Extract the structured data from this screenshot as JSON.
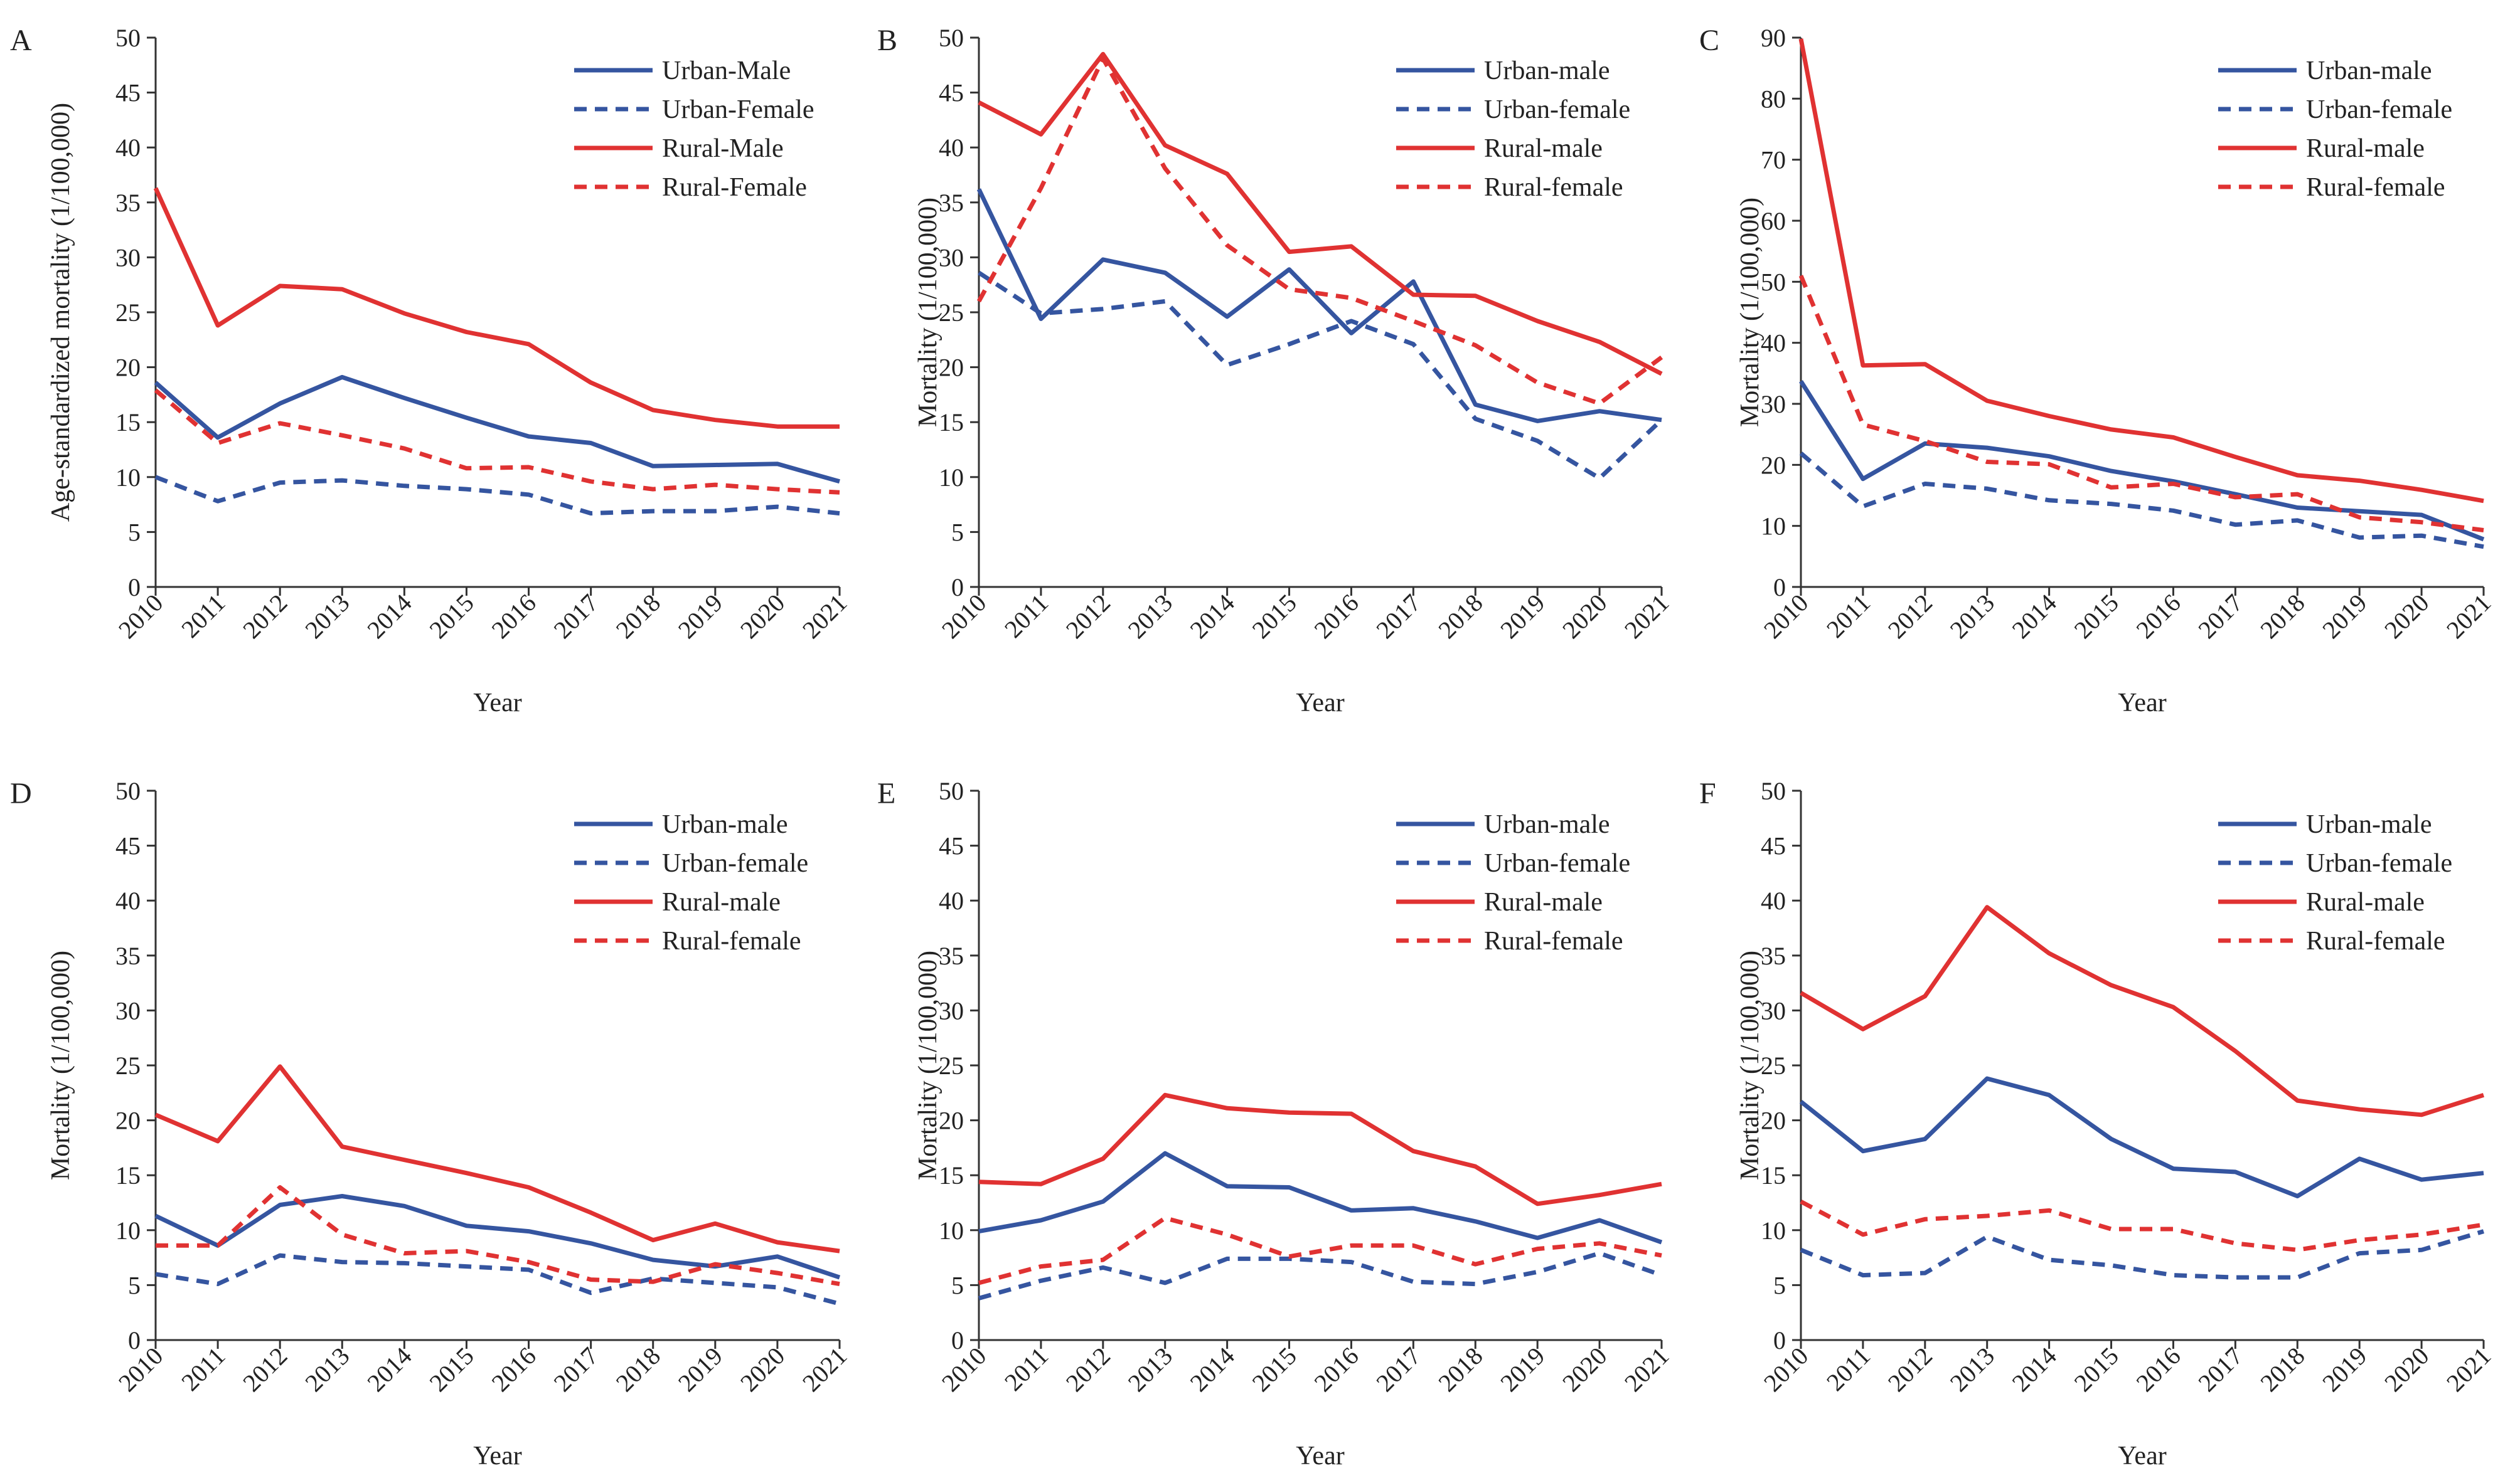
{
  "years": [
    "2010",
    "2011",
    "2012",
    "2013",
    "2014",
    "2015",
    "2016",
    "2017",
    "2018",
    "2019",
    "2020",
    "2021"
  ],
  "colors": {
    "urban": "#3555a0",
    "rural": "#e03232",
    "axis": "#333333"
  },
  "chart_data": [
    {
      "panel": "A",
      "type": "line",
      "ylabel": "Age-standardized mortality (1/100,000)",
      "xlabel": "Year",
      "ylim": [
        0,
        50
      ],
      "ytick_step": 5,
      "series": [
        {
          "name": "Urban-Male",
          "group": "urban",
          "style": "solid",
          "values": [
            18.6,
            13.6,
            16.7,
            19.1,
            17.2,
            15.4,
            13.7,
            13.1,
            11.0,
            11.1,
            11.2,
            9.6
          ]
        },
        {
          "name": "Urban-Female",
          "group": "urban",
          "style": "dashed",
          "values": [
            10.0,
            7.8,
            9.5,
            9.7,
            9.2,
            8.9,
            8.4,
            6.7,
            6.9,
            6.9,
            7.3,
            6.7
          ]
        },
        {
          "name": "Rural-Male",
          "group": "rural",
          "style": "solid",
          "values": [
            36.3,
            23.8,
            27.4,
            27.1,
            24.9,
            23.2,
            22.1,
            18.6,
            16.1,
            15.2,
            14.6,
            14.6
          ]
        },
        {
          "name": "Rural-Female",
          "group": "rural",
          "style": "dashed",
          "values": [
            17.9,
            13.1,
            14.9,
            13.8,
            12.6,
            10.8,
            10.9,
            9.6,
            8.9,
            9.3,
            8.9,
            8.6
          ]
        }
      ]
    },
    {
      "panel": "B",
      "type": "line",
      "ylabel": "Mortality (1/100,000)",
      "xlabel": "Year",
      "ylim": [
        0,
        50
      ],
      "ytick_step": 5,
      "series": [
        {
          "name": "Urban-male",
          "group": "urban",
          "style": "solid",
          "values": [
            36.2,
            24.4,
            29.8,
            28.6,
            24.6,
            28.9,
            23.1,
            27.8,
            16.6,
            15.1,
            16.0,
            15.2
          ]
        },
        {
          "name": "Urban-female",
          "group": "urban",
          "style": "dashed",
          "values": [
            28.6,
            24.9,
            25.3,
            26.0,
            20.2,
            22.1,
            24.2,
            22.1,
            15.3,
            13.3,
            9.9,
            15.2
          ]
        },
        {
          "name": "Rural-male",
          "group": "rural",
          "style": "solid",
          "values": [
            44.1,
            41.2,
            48.5,
            40.2,
            37.6,
            30.5,
            31.0,
            26.6,
            26.5,
            24.2,
            22.3,
            19.4
          ]
        },
        {
          "name": "Rural-female",
          "group": "rural",
          "style": "dashed",
          "values": [
            26.0,
            36.3,
            48.1,
            38.1,
            31.1,
            27.1,
            26.3,
            24.2,
            22.0,
            18.6,
            16.7,
            20.9
          ]
        }
      ]
    },
    {
      "panel": "C",
      "type": "line",
      "ylabel": "Mortality (1/100,000)",
      "xlabel": "Year",
      "ylim": [
        0,
        90
      ],
      "ytick_step": 10,
      "series": [
        {
          "name": "Urban-male",
          "group": "urban",
          "style": "solid",
          "values": [
            33.7,
            17.7,
            23.5,
            22.8,
            21.4,
            19.0,
            17.3,
            15.2,
            13.0,
            12.4,
            11.8,
            7.8
          ]
        },
        {
          "name": "Urban-female",
          "group": "urban",
          "style": "dashed",
          "values": [
            21.9,
            13.2,
            16.9,
            16.1,
            14.2,
            13.6,
            12.5,
            10.2,
            10.9,
            8.1,
            8.4,
            6.6
          ]
        },
        {
          "name": "Rural-male",
          "group": "rural",
          "style": "solid",
          "values": [
            89.8,
            36.3,
            36.5,
            30.5,
            28.0,
            25.8,
            24.5,
            21.3,
            18.3,
            17.4,
            15.9,
            14.1
          ]
        },
        {
          "name": "Rural-female",
          "group": "rural",
          "style": "dashed",
          "values": [
            51.0,
            26.6,
            23.9,
            20.5,
            20.1,
            16.3,
            16.9,
            14.7,
            15.2,
            11.4,
            10.6,
            9.3
          ]
        }
      ]
    },
    {
      "panel": "D",
      "type": "line",
      "ylabel": "Mortality (1/100,000)",
      "xlabel": "Year",
      "ylim": [
        0,
        50
      ],
      "ytick_step": 5,
      "series": [
        {
          "name": "Urban-male",
          "group": "urban",
          "style": "solid",
          "values": [
            11.3,
            8.6,
            12.3,
            13.1,
            12.2,
            10.4,
            9.9,
            8.8,
            7.3,
            6.7,
            7.6,
            5.7
          ]
        },
        {
          "name": "Urban-female",
          "group": "urban",
          "style": "dashed",
          "values": [
            6.0,
            5.1,
            7.7,
            7.1,
            7.0,
            6.7,
            6.4,
            4.3,
            5.6,
            5.2,
            4.8,
            3.3
          ]
        },
        {
          "name": "Rural-male",
          "group": "rural",
          "style": "solid",
          "values": [
            20.5,
            18.1,
            24.9,
            17.6,
            16.4,
            15.2,
            13.9,
            11.6,
            9.1,
            10.6,
            8.9,
            8.1
          ]
        },
        {
          "name": "Rural-female",
          "group": "rural",
          "style": "dashed",
          "values": [
            8.6,
            8.6,
            13.9,
            9.6,
            7.9,
            8.1,
            7.1,
            5.5,
            5.3,
            6.9,
            6.1,
            5.1
          ]
        }
      ]
    },
    {
      "panel": "E",
      "type": "line",
      "ylabel": "Mortality (1/100,000)",
      "xlabel": "Year",
      "ylim": [
        0,
        50
      ],
      "ytick_step": 5,
      "series": [
        {
          "name": "Urban-male",
          "group": "urban",
          "style": "solid",
          "values": [
            9.9,
            10.9,
            12.6,
            17.0,
            14.0,
            13.9,
            11.8,
            12.0,
            10.8,
            9.3,
            10.9,
            8.9
          ]
        },
        {
          "name": "Urban-female",
          "group": "urban",
          "style": "dashed",
          "values": [
            3.8,
            5.4,
            6.6,
            5.2,
            7.4,
            7.4,
            7.1,
            5.3,
            5.1,
            6.2,
            7.9,
            5.9
          ]
        },
        {
          "name": "Rural-male",
          "group": "rural",
          "style": "solid",
          "values": [
            14.4,
            14.2,
            16.5,
            22.3,
            21.1,
            20.7,
            20.6,
            17.2,
            15.8,
            12.4,
            13.2,
            14.2
          ]
        },
        {
          "name": "Rural-female",
          "group": "rural",
          "style": "dashed",
          "values": [
            5.2,
            6.7,
            7.3,
            11.1,
            9.6,
            7.6,
            8.6,
            8.6,
            6.9,
            8.3,
            8.8,
            7.7
          ]
        }
      ]
    },
    {
      "panel": "F",
      "type": "line",
      "ylabel": "Mortality (1/100,000)",
      "xlabel": "Year",
      "ylim": [
        0,
        50
      ],
      "ytick_step": 5,
      "series": [
        {
          "name": "Urban-male",
          "group": "urban",
          "style": "solid",
          "values": [
            21.7,
            17.2,
            18.3,
            23.8,
            22.3,
            18.3,
            15.6,
            15.3,
            13.1,
            16.5,
            14.6,
            15.2
          ]
        },
        {
          "name": "Urban-female",
          "group": "urban",
          "style": "dashed",
          "values": [
            8.2,
            5.9,
            6.1,
            9.4,
            7.3,
            6.8,
            5.9,
            5.7,
            5.7,
            7.9,
            8.2,
            9.9
          ]
        },
        {
          "name": "Rural-male",
          "group": "rural",
          "style": "solid",
          "values": [
            31.6,
            28.3,
            31.3,
            39.4,
            35.2,
            32.3,
            30.3,
            26.3,
            21.8,
            21.0,
            20.5,
            22.3
          ]
        },
        {
          "name": "Rural-female",
          "group": "rural",
          "style": "dashed",
          "values": [
            12.6,
            9.6,
            11.0,
            11.3,
            11.8,
            10.1,
            10.1,
            8.8,
            8.2,
            9.1,
            9.6,
            10.5
          ]
        }
      ]
    }
  ]
}
